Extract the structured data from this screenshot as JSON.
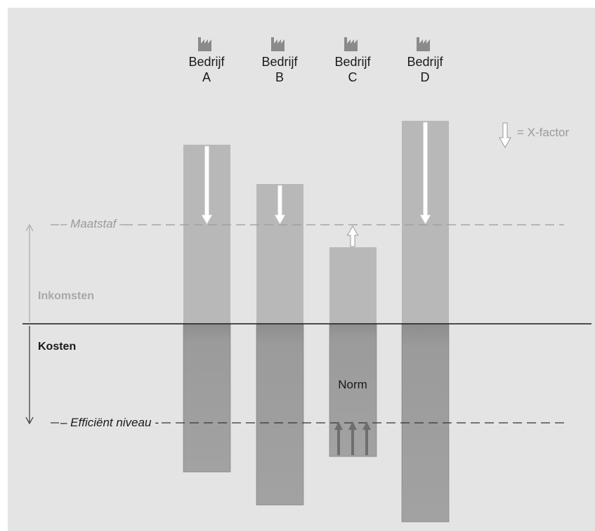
{
  "companies": [
    {
      "name": "Bedrijf\nA",
      "revenue_direction": "down"
    },
    {
      "name": "Bedrijf\nB",
      "revenue_direction": "down"
    },
    {
      "name": "Bedrijf\nC",
      "revenue_direction": "up"
    },
    {
      "name": "Bedrijf\nD",
      "revenue_direction": "down"
    }
  ],
  "labels": {
    "maatstaf": "– Maatstaf –",
    "efficient": "– Efficiënt niveau -",
    "inkomsten": "Inkomsten",
    "kosten": "Kosten",
    "norm": "Norm",
    "legend": "= X-factor"
  },
  "icons": {
    "company": "factory-icon",
    "legend": "arrow-down-icon"
  },
  "colors": {
    "background": "#e4e4e4",
    "bar_upper": "#b8b8b8",
    "bar_lower": "#999999",
    "arrow_fill": "#ffffff",
    "norm_arrows": "#6e6e6e",
    "maatstaf_line": "#9a9a9a",
    "efficient_line": "#333333",
    "text_dark": "#1a1a1a",
    "text_grey": "#9a9a9a"
  }
}
